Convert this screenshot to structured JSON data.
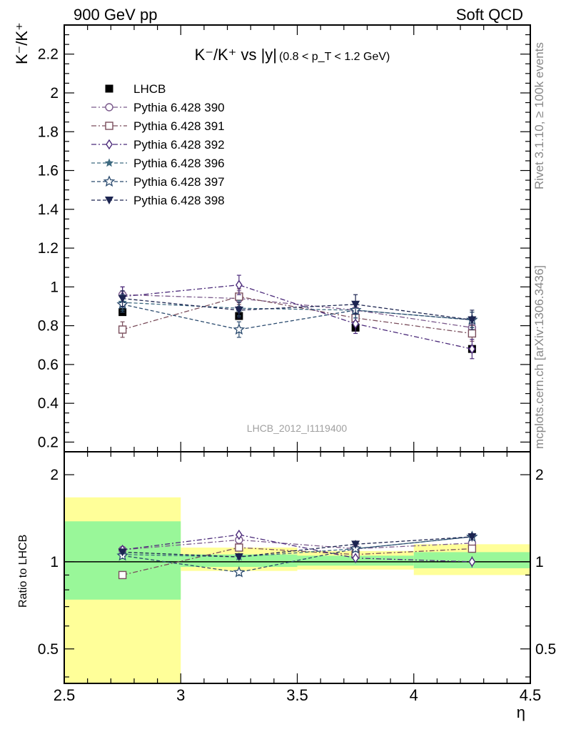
{
  "header": {
    "left": "900 GeV pp",
    "right": "Soft QCD",
    "side_top": "Rivet 3.1.10, ≥ 100k events",
    "side_bottom": "mcplots.cern.ch [arXiv:1306.3436]"
  },
  "chart_data": [
    {
      "type": "line",
      "title": "K⁻/K⁺ vs |y|",
      "title_cut": "(0.8 < p_T < 1.2 GeV)",
      "ylabel": "K⁻/K⁺",
      "watermark": "LHCB_2012_I1119400",
      "xlim": [
        2.5,
        4.5
      ],
      "ylim": [
        0.15,
        2.35
      ],
      "y_ticks": [
        "0.2",
        "0.4",
        "0.6",
        "0.8",
        "1",
        "1.2",
        "1.4",
        "1.6",
        "1.8",
        "2",
        "2.2"
      ],
      "grid": false,
      "legend_position": "top-left",
      "x": [
        2.75,
        3.25,
        3.75,
        4.25
      ],
      "x_bins": [
        [
          2.5,
          3.0
        ],
        [
          3.0,
          3.5
        ],
        [
          3.5,
          4.0
        ],
        [
          4.0,
          4.5
        ]
      ],
      "data": {
        "name": "LHCB",
        "values": [
          0.87,
          0.85,
          0.79,
          0.68
        ],
        "color": "#000000",
        "marker": "filled-square"
      },
      "series": [
        {
          "name": "Pythia 6.428 390",
          "values": [
            0.96,
            0.94,
            0.88,
            0.79
          ],
          "errors": [
            0.04,
            0.04,
            0.04,
            0.04
          ],
          "color": "#7b5a8c",
          "marker": "open-circle",
          "dash": "dashdot"
        },
        {
          "name": "Pythia 6.428 391",
          "values": [
            0.78,
            0.95,
            0.84,
            0.76
          ],
          "errors": [
            0.04,
            0.04,
            0.04,
            0.04
          ],
          "color": "#7a4e5c",
          "marker": "open-square",
          "dash": "dashdot"
        },
        {
          "name": "Pythia 6.428 392",
          "values": [
            0.95,
            1.01,
            0.81,
            0.68
          ],
          "errors": [
            0.05,
            0.05,
            0.05,
            0.05
          ],
          "color": "#4b2a7a",
          "marker": "open-diamond",
          "dash": "dashdot"
        },
        {
          "name": "Pythia 6.428 396",
          "values": [
            0.92,
            0.89,
            0.88,
            0.83
          ],
          "errors": [
            0.04,
            0.04,
            0.04,
            0.04
          ],
          "color": "#3e6a80",
          "marker": "filled-star",
          "dash": "dashed"
        },
        {
          "name": "Pythia 6.428 397",
          "values": [
            0.91,
            0.78,
            0.88,
            0.83
          ],
          "errors": [
            0.04,
            0.04,
            0.04,
            0.04
          ],
          "color": "#2a4a6e",
          "marker": "open-star",
          "dash": "dashed"
        },
        {
          "name": "Pythia 6.428 398",
          "values": [
            0.94,
            0.88,
            0.91,
            0.83
          ],
          "errors": [
            0.04,
            0.04,
            0.05,
            0.05
          ],
          "color": "#1c2450",
          "marker": "filled-triangle-down",
          "dash": "dashed"
        }
      ]
    },
    {
      "type": "line",
      "ylabel": "Ratio to LHCB",
      "xlabel": "η",
      "xlim": [
        2.5,
        4.5
      ],
      "ylim": [
        0.38,
        2.4
      ],
      "y_scale": "log",
      "y_ticks": [
        "0.5",
        "1",
        "2"
      ],
      "x_ticks": [
        "2.5",
        "3",
        "3.5",
        "4",
        "4.5"
      ],
      "reference_line": 1,
      "bands": {
        "green": [
          [
            0.74,
            1.38
          ],
          [
            0.96,
            1.06
          ],
          [
            0.97,
            1.05
          ],
          [
            0.95,
            1.08
          ]
        ],
        "yellow": [
          [
            0.35,
            1.67
          ],
          [
            0.93,
            1.12
          ],
          [
            0.94,
            1.09
          ],
          [
            0.9,
            1.15
          ]
        ],
        "green_color": "#99f799",
        "yellow_color": "#ffff99"
      },
      "ratios": [
        [
          1.1,
          1.19,
          1.11,
          1.16
        ],
        [
          0.9,
          1.12,
          1.06,
          1.11
        ],
        [
          1.1,
          1.24,
          1.03,
          1.0
        ],
        [
          1.06,
          1.04,
          1.11,
          1.22
        ],
        [
          1.05,
          0.92,
          1.11,
          1.22
        ],
        [
          1.08,
          1.04,
          1.15,
          1.22
        ]
      ]
    }
  ]
}
